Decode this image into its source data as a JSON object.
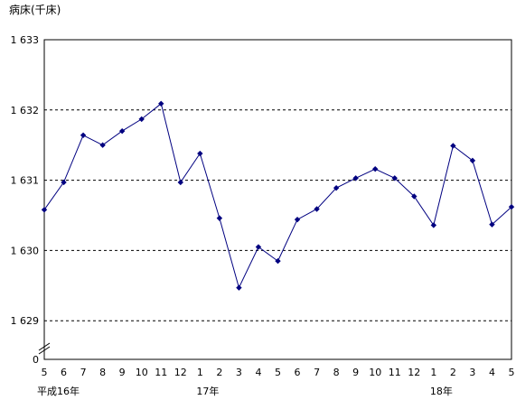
{
  "chart_data": {
    "type": "line",
    "ylabel": "病床(千床)",
    "ylim": [
      1628.45,
      1633
    ],
    "y_ticks": [
      {
        "label": "1 633",
        "value": 1633
      },
      {
        "label": "1 632",
        "value": 1632
      },
      {
        "label": "1 631",
        "value": 1631
      },
      {
        "label": "1 630",
        "value": 1630
      },
      {
        "label": "1 629",
        "value": 1629
      }
    ],
    "y_origin_label": "0",
    "y_axis_broken": true,
    "categories": [
      "5",
      "6",
      "7",
      "8",
      "9",
      "10",
      "11",
      "12",
      "1",
      "2",
      "3",
      "4",
      "5",
      "6",
      "7",
      "8",
      "9",
      "10",
      "11",
      "12",
      "1",
      "2",
      "3",
      "4",
      "5"
    ],
    "era_labels": [
      {
        "label": "平成16年",
        "index": 0
      },
      {
        "label": "17年",
        "index": 8
      },
      {
        "label": "18年",
        "index": 20
      }
    ],
    "series": [
      {
        "color": "#000080",
        "values": [
          1630.58,
          1630.97,
          1631.64,
          1631.5,
          1631.7,
          1631.87,
          1632.09,
          1630.97,
          1631.38,
          1630.46,
          1629.47,
          1630.05,
          1629.85,
          1630.44,
          1630.59,
          1630.89,
          1631.03,
          1631.16,
          1631.03,
          1630.77,
          1630.36,
          1631.49,
          1631.28,
          1630.37,
          1630.62
        ]
      }
    ],
    "grid": true
  }
}
